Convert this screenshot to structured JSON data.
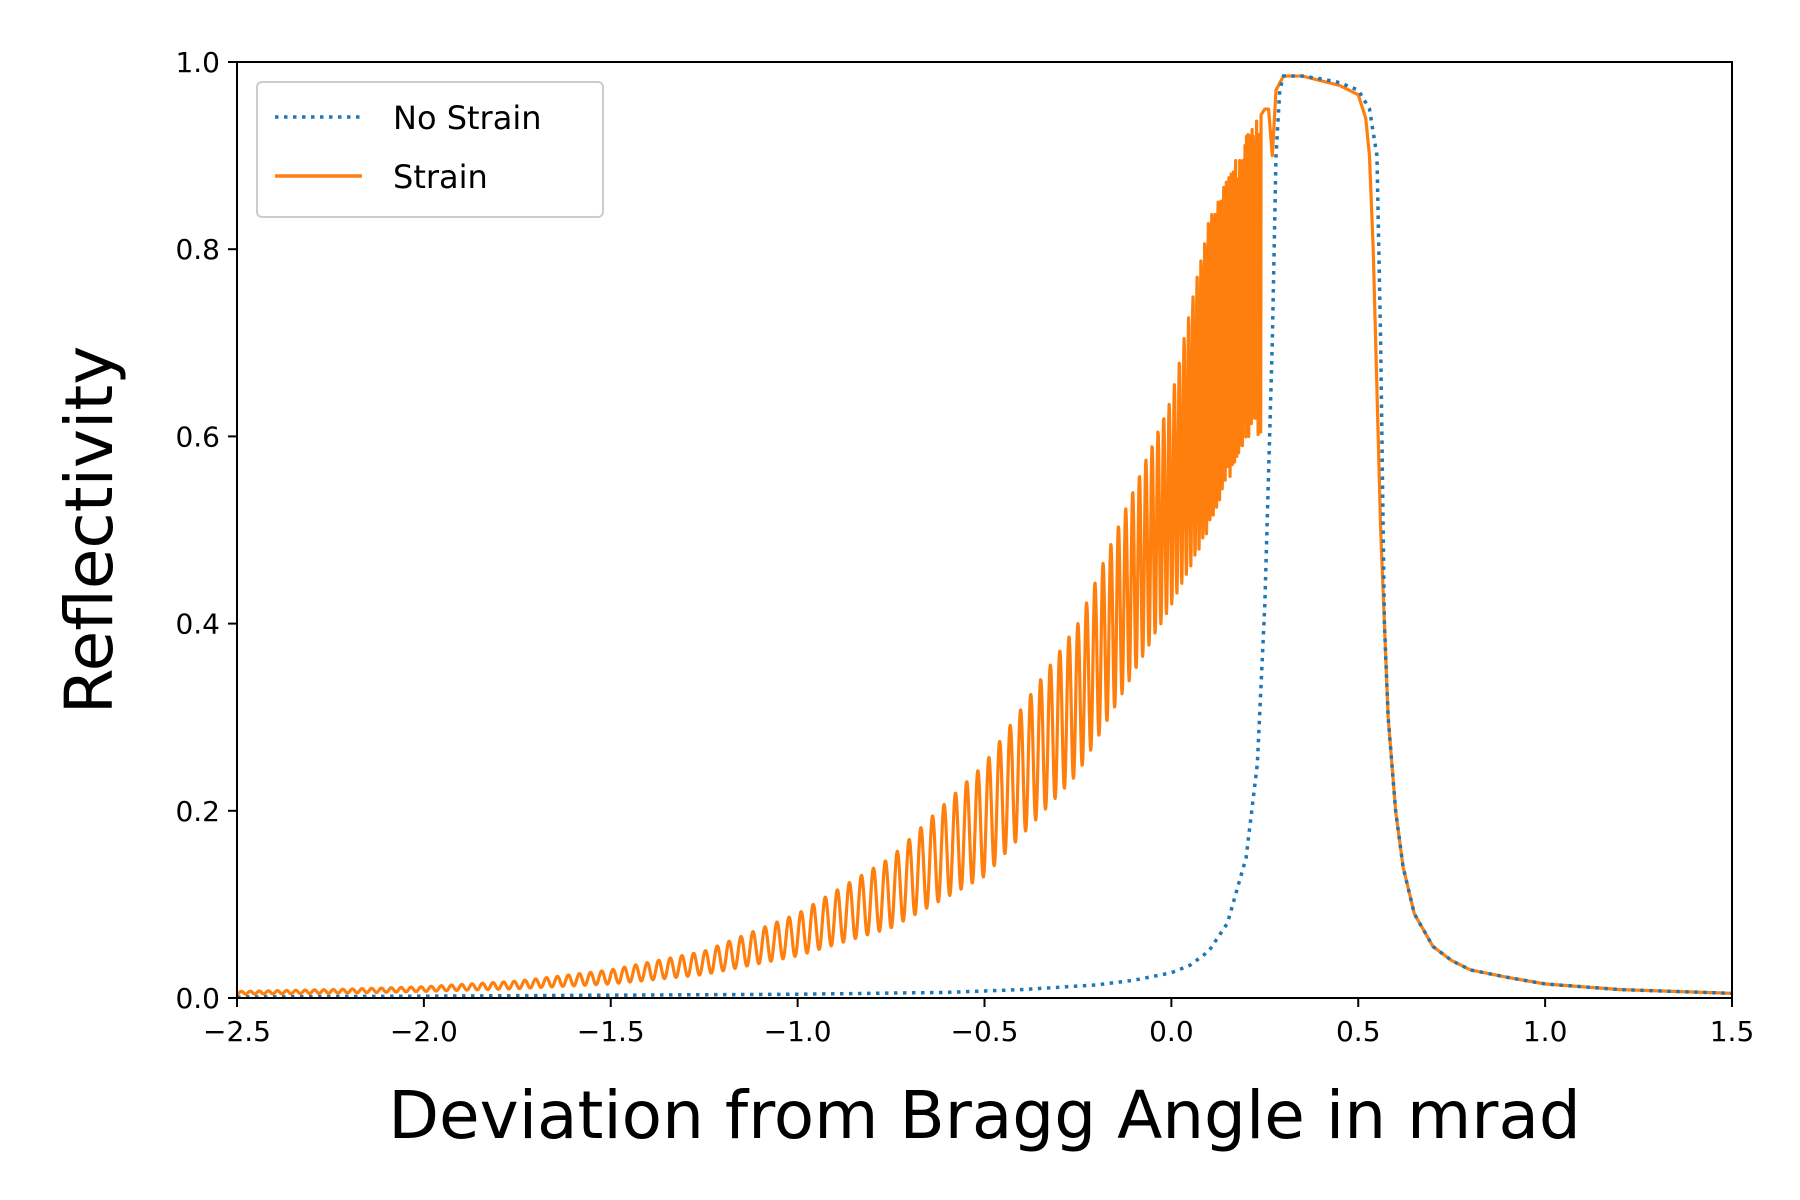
{
  "chart_data": {
    "type": "line",
    "title": "",
    "xlabel": "Deviation from Bragg Angle in mrad",
    "ylabel": "Reflectivity",
    "xlim": [
      -2.5,
      1.5
    ],
    "ylim": [
      0.0,
      1.0
    ],
    "xticks": [
      -2.5,
      -2.0,
      -1.5,
      -1.0,
      -0.5,
      0.0,
      0.5,
      1.0,
      1.5
    ],
    "xtick_labels": [
      "−2.5",
      "−2.0",
      "−1.5",
      "−1.0",
      "−0.5",
      "0.0",
      "0.5",
      "1.0",
      "1.5"
    ],
    "yticks": [
      0.0,
      0.2,
      0.4,
      0.6,
      0.8,
      1.0
    ],
    "ytick_labels": [
      "0.0",
      "0.2",
      "0.4",
      "0.6",
      "0.8",
      "1.0"
    ],
    "grid": false,
    "legend_position": "upper-left",
    "series": [
      {
        "name": "No Strain",
        "style": "dotted",
        "color": "#1f77b4",
        "x": [
          -2.5,
          -2.0,
          -1.5,
          -1.0,
          -0.8,
          -0.6,
          -0.4,
          -0.2,
          -0.1,
          0.0,
          0.05,
          0.1,
          0.15,
          0.2,
          0.23,
          0.25,
          0.27,
          0.28,
          0.29,
          0.3,
          0.35,
          0.4,
          0.45,
          0.5,
          0.53,
          0.55,
          0.56,
          0.57,
          0.58,
          0.6,
          0.62,
          0.65,
          0.7,
          0.75,
          0.8,
          0.9,
          1.0,
          1.2,
          1.5
        ],
        "y": [
          0.001,
          0.002,
          0.003,
          0.004,
          0.005,
          0.006,
          0.009,
          0.014,
          0.019,
          0.027,
          0.035,
          0.05,
          0.08,
          0.15,
          0.25,
          0.42,
          0.7,
          0.9,
          0.97,
          0.985,
          0.985,
          0.982,
          0.978,
          0.97,
          0.95,
          0.9,
          0.7,
          0.4,
          0.3,
          0.2,
          0.14,
          0.09,
          0.055,
          0.04,
          0.03,
          0.022,
          0.015,
          0.009,
          0.005
        ]
      },
      {
        "name": "Strain",
        "style": "solid",
        "color": "#ff7f0e",
        "x": [
          -2.5,
          -2.25,
          -2.0,
          -1.75,
          -1.5,
          -1.25,
          -1.0,
          -0.75,
          -0.5,
          -0.25,
          0.0,
          0.1,
          0.2,
          0.25,
          0.26,
          0.27,
          0.28,
          0.3,
          0.35,
          0.4,
          0.45,
          0.5,
          0.52,
          0.53,
          0.54,
          0.55,
          0.56,
          0.57,
          0.58,
          0.6,
          0.62,
          0.65,
          0.7,
          0.75,
          0.8,
          0.9,
          1.0,
          1.2,
          1.5
        ],
        "y_lower": [
          0.004,
          0.005,
          0.007,
          0.01,
          0.015,
          0.025,
          0.045,
          0.075,
          0.13,
          0.24,
          0.42,
          0.5,
          0.6,
          0.6,
          0.65,
          0.85,
          0.95,
          0.985,
          0.985,
          0.98,
          0.975,
          0.965,
          0.94,
          0.9,
          0.8,
          0.65,
          0.5,
          0.4,
          0.3,
          0.2,
          0.14,
          0.09,
          0.055,
          0.04,
          0.03,
          0.022,
          0.015,
          0.009,
          0.005
        ],
        "y_upper": [
          0.007,
          0.009,
          0.012,
          0.018,
          0.03,
          0.05,
          0.09,
          0.15,
          0.25,
          0.4,
          0.64,
          0.83,
          0.92,
          0.95,
          0.95,
          0.9,
          0.97,
          0.985,
          0.985,
          0.98,
          0.975,
          0.965,
          0.94,
          0.9,
          0.8,
          0.65,
          0.5,
          0.4,
          0.3,
          0.2,
          0.14,
          0.09,
          0.055,
          0.04,
          0.03,
          0.022,
          0.015,
          0.009,
          0.005
        ]
      }
    ]
  }
}
